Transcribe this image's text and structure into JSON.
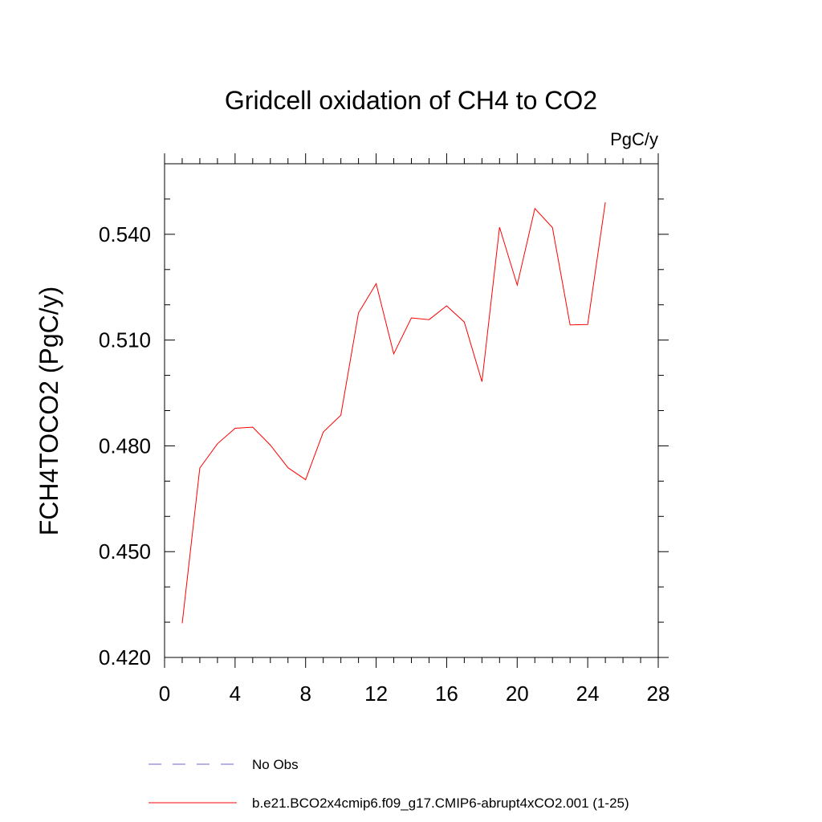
{
  "chart_data": {
    "type": "line",
    "title": "Gridcell oxidation of CH4 to CO2",
    "units": "PgC/y",
    "xlabel": "",
    "ylabel": "FCH4TOCO2  (PgC/y)",
    "xlim": [
      0,
      28
    ],
    "ylim": [
      0.42,
      0.56
    ],
    "xticks": [
      "0",
      "4",
      "8",
      "12",
      "16",
      "20",
      "24",
      "28"
    ],
    "xtick_values": [
      0,
      4,
      8,
      12,
      16,
      20,
      24,
      28
    ],
    "yticks": [
      "0.420",
      "0.450",
      "0.480",
      "0.510",
      "0.540"
    ],
    "ytick_values": [
      0.42,
      0.45,
      0.48,
      0.51,
      0.54
    ],
    "series": [
      {
        "name": "b.e21.BCO2x4cmip6.f09_g17.CMIP6-abrupt4xCO2.001 (1-25)",
        "color": "#ff0000",
        "style": "solid",
        "x": [
          1,
          2,
          3,
          4,
          5,
          6,
          7,
          8,
          9,
          10,
          11,
          12,
          13,
          14,
          15,
          16,
          17,
          18,
          19,
          20,
          21,
          22,
          23,
          24,
          25
        ],
        "values": [
          0.4297,
          0.4737,
          0.4806,
          0.485,
          0.4853,
          0.4802,
          0.4738,
          0.4704,
          0.4839,
          0.4887,
          0.5177,
          0.526,
          0.5061,
          0.5163,
          0.5158,
          0.5197,
          0.5151,
          0.4982,
          0.542,
          0.5256,
          0.5473,
          0.5419,
          0.5143,
          0.5144,
          0.5491
        ]
      }
    ],
    "legend": [
      {
        "label": "No Obs",
        "color": "#6a6ad0",
        "style": "dashed"
      },
      {
        "label": "b.e21.BCO2x4cmip6.f09_g17.CMIP6-abrupt4xCO2.001 (1-25)",
        "color": "#ff0000",
        "style": "solid"
      }
    ],
    "legend_position": "bottom"
  }
}
